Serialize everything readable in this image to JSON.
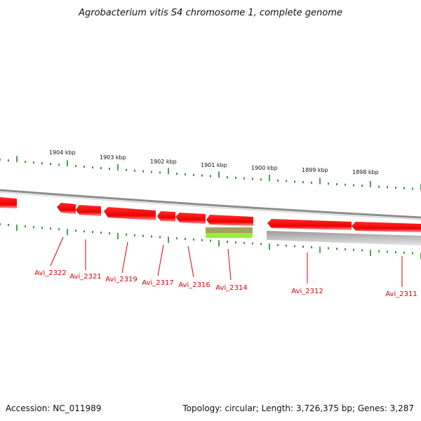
{
  "title": "Agrobacterium vitis S4 chromosome 1, complete genome",
  "footer": {
    "accession": "Accession: NC_011989",
    "summary": "Topology: circular; Length: 3,726,375 bp; Genes: 3,287"
  },
  "scale_labels": [
    "1904 kbp",
    "1903 kbp",
    "1902 kbp",
    "1901 kbp",
    "1900 kbp",
    "1899 kbp",
    "1898 kbp"
  ],
  "gene_labels": [
    "Avi_2322",
    "Avi_2321",
    "Avi_2319",
    "Avi_2317",
    "Avi_2316",
    "Avi_2314",
    "Avi_2312",
    "Avi_2311"
  ],
  "colors": {
    "gene": "#ee0000",
    "gene_label": "#dd0000",
    "ticks": "#228822",
    "backbone": "#888888",
    "rna_top": "#a8a060",
    "rna_bottom": "#99ee33"
  }
}
